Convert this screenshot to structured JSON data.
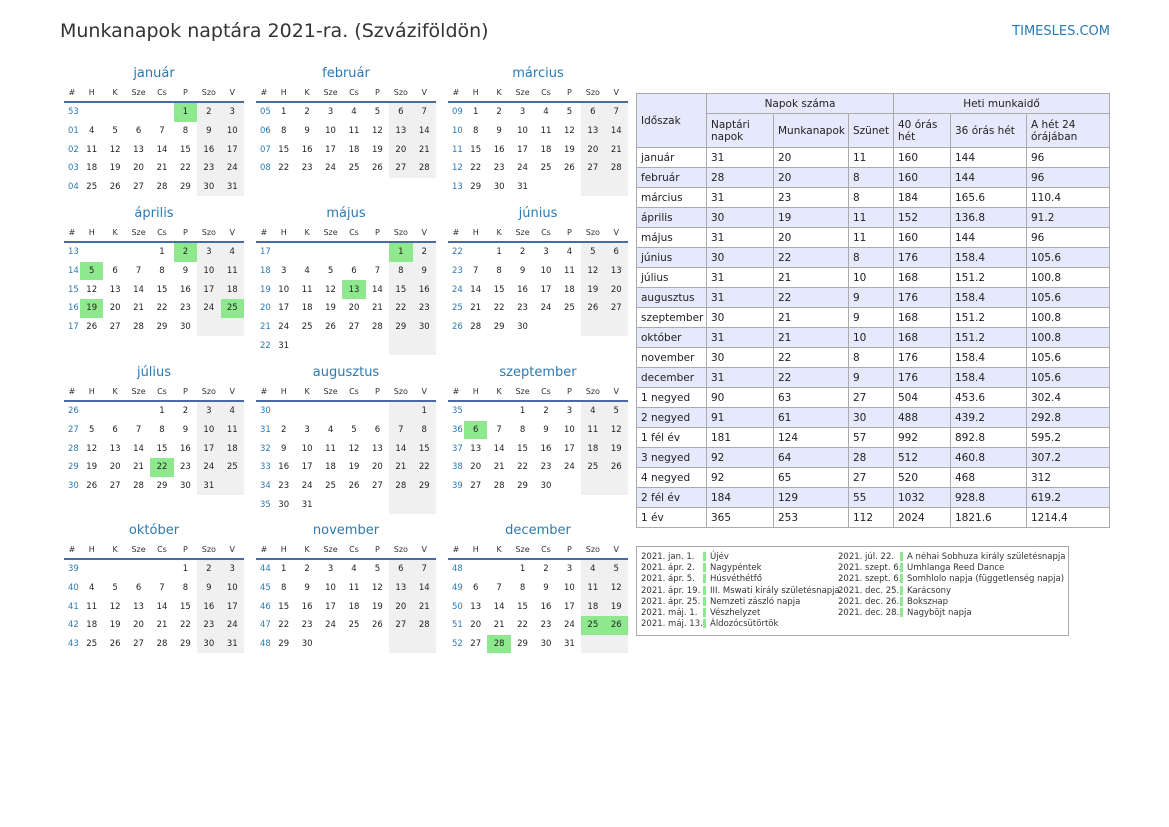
{
  "title": "Munkanapok naptára 2021-ra. (Szváziföldön)",
  "site": "TIMESLES.COM",
  "colors": {
    "accent": "#2a7ab5",
    "holiday": "#8ee88e",
    "weekend": "#f0f0f0",
    "table_alt": "#e6e8fb"
  },
  "weekday_headers": [
    "#",
    "H",
    "K",
    "Sze",
    "Cs",
    "P",
    "Szo",
    "V"
  ],
  "holidays": {
    "1": [
      1
    ],
    "4": [
      2,
      5,
      19,
      25
    ],
    "5": [
      1,
      13
    ],
    "7": [
      22
    ],
    "9": [
      6
    ],
    "12": [
      25,
      26,
      28
    ]
  },
  "months": [
    {
      "name": "január",
      "first_wd": 4,
      "days": 31,
      "first_week": 53
    },
    {
      "name": "február",
      "first_wd": 0,
      "days": 28,
      "first_week": 5
    },
    {
      "name": "március",
      "first_wd": 0,
      "days": 31,
      "first_week": 9
    },
    {
      "name": "április",
      "first_wd": 3,
      "days": 30,
      "first_week": 13
    },
    {
      "name": "május",
      "first_wd": 5,
      "days": 31,
      "first_week": 17
    },
    {
      "name": "június",
      "first_wd": 1,
      "days": 30,
      "first_week": 22
    },
    {
      "name": "július",
      "first_wd": 3,
      "days": 31,
      "first_week": 26
    },
    {
      "name": "augusztus",
      "first_wd": 6,
      "days": 31,
      "first_week": 30
    },
    {
      "name": "szeptember",
      "first_wd": 2,
      "days": 30,
      "first_week": 35
    },
    {
      "name": "október",
      "first_wd": 4,
      "days": 31,
      "first_week": 39
    },
    {
      "name": "november",
      "first_wd": 0,
      "days": 30,
      "first_week": 44
    },
    {
      "name": "december",
      "first_wd": 2,
      "days": 31,
      "first_week": 48
    }
  ],
  "summary": {
    "h_period": "Időszak",
    "h_days": "Napok száma",
    "h_hours": "Heti munkaidő",
    "h_cal": "Naptári napok",
    "h_work": "Munkanapok",
    "h_off": "Szünet",
    "h_40": "40 órás hét",
    "h_36": "36 órás hét",
    "h_24": "A hét 24 órájában",
    "rows": [
      [
        "január",
        "31",
        "20",
        "11",
        "160",
        "144",
        "96"
      ],
      [
        "február",
        "28",
        "20",
        "8",
        "160",
        "144",
        "96"
      ],
      [
        "március",
        "31",
        "23",
        "8",
        "184",
        "165.6",
        "110.4"
      ],
      [
        "április",
        "30",
        "19",
        "11",
        "152",
        "136.8",
        "91.2"
      ],
      [
        "május",
        "31",
        "20",
        "11",
        "160",
        "144",
        "96"
      ],
      [
        "június",
        "30",
        "22",
        "8",
        "176",
        "158.4",
        "105.6"
      ],
      [
        "július",
        "31",
        "21",
        "10",
        "168",
        "151.2",
        "100.8"
      ],
      [
        "augusztus",
        "31",
        "22",
        "9",
        "176",
        "158.4",
        "105.6"
      ],
      [
        "szeptember",
        "30",
        "21",
        "9",
        "168",
        "151.2",
        "100.8"
      ],
      [
        "október",
        "31",
        "21",
        "10",
        "168",
        "151.2",
        "100.8"
      ],
      [
        "november",
        "30",
        "22",
        "8",
        "176",
        "158.4",
        "105.6"
      ],
      [
        "december",
        "31",
        "22",
        "9",
        "176",
        "158.4",
        "105.6"
      ],
      [
        "1 negyed",
        "90",
        "63",
        "27",
        "504",
        "453.6",
        "302.4"
      ],
      [
        "2 negyed",
        "91",
        "61",
        "30",
        "488",
        "439.2",
        "292.8"
      ],
      [
        "1 fél év",
        "181",
        "124",
        "57",
        "992",
        "892.8",
        "595.2"
      ],
      [
        "3 negyed",
        "92",
        "64",
        "28",
        "512",
        "460.8",
        "307.2"
      ],
      [
        "4 negyed",
        "92",
        "65",
        "27",
        "520",
        "468",
        "312"
      ],
      [
        "2 fél év",
        "184",
        "129",
        "55",
        "1032",
        "928.8",
        "619.2"
      ],
      [
        "1 év",
        "365",
        "253",
        "112",
        "2024",
        "1821.6",
        "1214.4"
      ]
    ]
  },
  "legend": {
    "left": [
      {
        "date": "2021. jan. 1.",
        "name": "Újév"
      },
      {
        "date": "2021. ápr. 2.",
        "name": "Nagypéntek"
      },
      {
        "date": "2021. ápr. 5.",
        "name": "Húsvéthétfő"
      },
      {
        "date": "2021. ápr. 19.",
        "name": "III. Mswati király születésnapja"
      },
      {
        "date": "2021. ápr. 25.",
        "name": "Nemzeti zászló napja"
      },
      {
        "date": "2021. máj. 1.",
        "name": "Vészhelyzet"
      },
      {
        "date": "2021. máj. 13.",
        "name": "Áldozócsütörtök"
      }
    ],
    "right": [
      {
        "date": "2021. júl. 22.",
        "name": "A néhai Sobhuza király születésnapja"
      },
      {
        "date": "2021. szept. 6.",
        "name": "Umhlanga Reed Dance"
      },
      {
        "date": "2021. szept. 6.",
        "name": "Somhlolo napja (függetlenség napja)"
      },
      {
        "date": "2021. dec. 25.",
        "name": "Karácsony"
      },
      {
        "date": "2021. dec. 26.",
        "name": "Bokszнap"
      },
      {
        "date": "2021. dec. 28.",
        "name": "Nagyböjt napja"
      }
    ]
  }
}
